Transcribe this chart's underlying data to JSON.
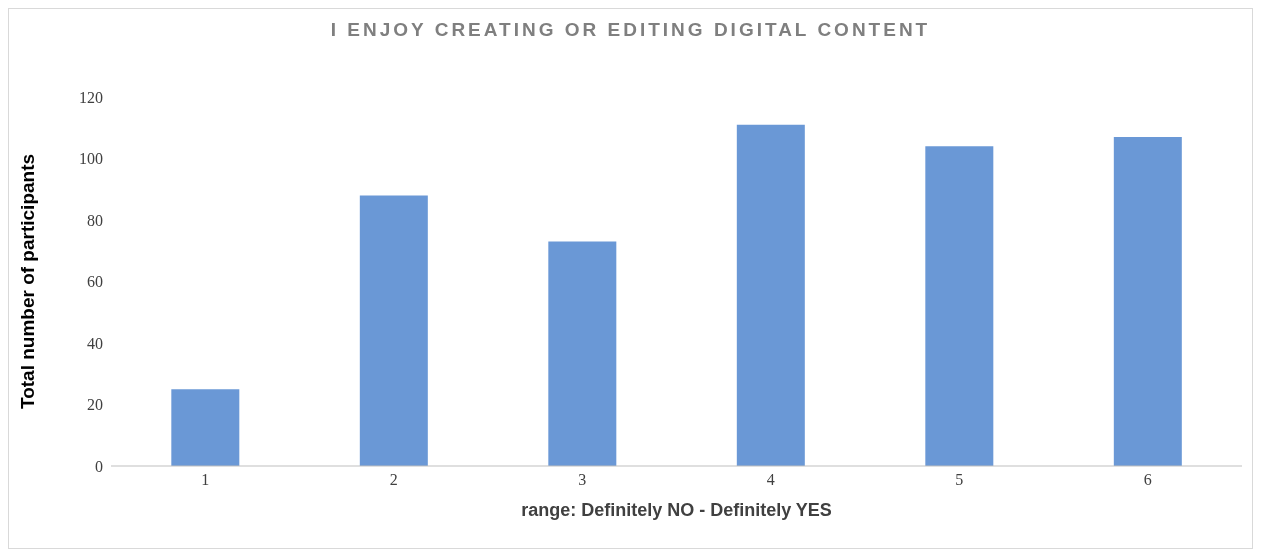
{
  "chart_data": {
    "type": "bar",
    "title": "I ENJOY CREATING OR EDITING DIGITAL CONTENT",
    "xlabel": "range: Definitely NO - Definitely YES",
    "ylabel": "Total number of participants",
    "categories": [
      "1",
      "2",
      "3",
      "4",
      "5",
      "6"
    ],
    "values": [
      25,
      88,
      73,
      111,
      104,
      107
    ],
    "color": "#6a98d6",
    "ylim": [
      0,
      120
    ],
    "yticks": [
      0,
      20,
      40,
      60,
      80,
      100,
      120
    ],
    "grid": false,
    "legend": false
  }
}
